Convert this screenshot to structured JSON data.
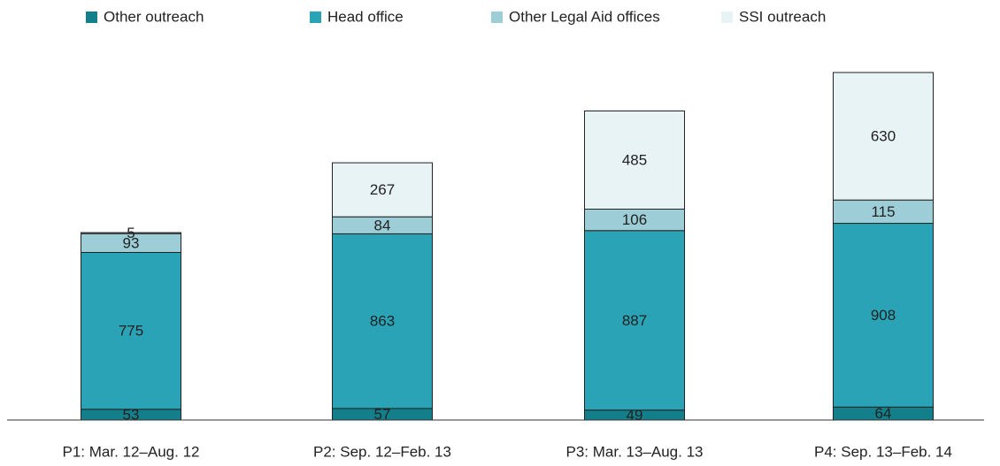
{
  "chart_data": {
    "type": "bar",
    "stacked": true,
    "categories": [
      "P1: Mar. 12–Aug. 12",
      "P2: Sep. 12–Feb. 13",
      "P3: Mar. 13–Aug. 13",
      "P4: Sep. 13–Feb. 14"
    ],
    "series": [
      {
        "name": "Other outreach",
        "color": "#137f8b",
        "values": [
          53,
          57,
          49,
          64
        ]
      },
      {
        "name": "Head office",
        "color": "#29a3b5",
        "values": [
          775,
          863,
          887,
          908
        ]
      },
      {
        "name": "Other Legal Aid offices",
        "color": "#9dcdd6",
        "values": [
          93,
          84,
          106,
          115
        ]
      },
      {
        "name": "SSI outreach",
        "color": "#e7f3f5",
        "values": [
          5,
          267,
          485,
          630
        ]
      }
    ],
    "legend": "top"
  }
}
